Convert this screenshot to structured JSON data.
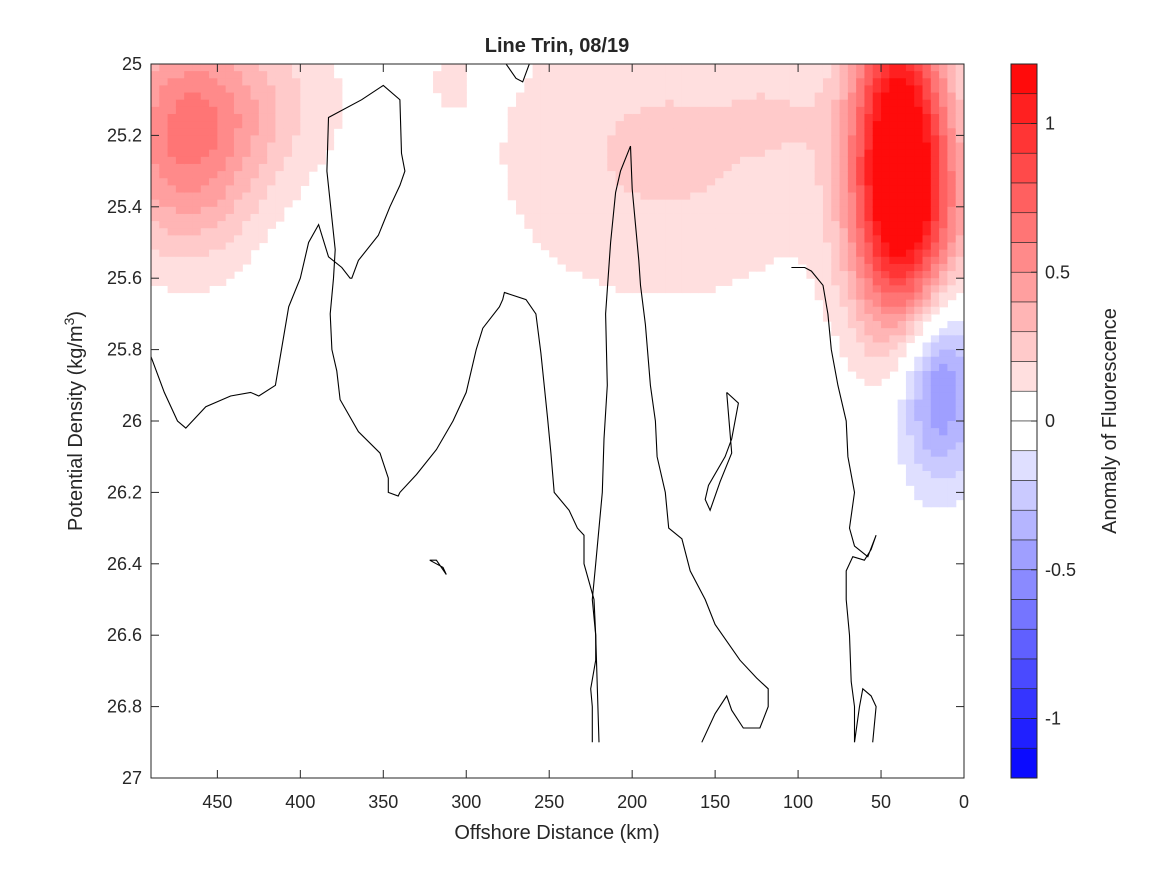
{
  "chart_data": {
    "type": "heatmap",
    "title": "Line Trin, 08/19",
    "xlabel": "Offshore Distance (km)",
    "ylabel": "Potential Density (kg/m",
    "ylabel_superscript": "3",
    "ylabel_suffix": ")",
    "xlim": [
      490,
      0
    ],
    "ylim": [
      25,
      27
    ],
    "x_reversed": true,
    "y_reversed": true,
    "grid": false,
    "x_ticks": [
      450,
      400,
      350,
      300,
      250,
      200,
      150,
      100,
      50,
      0
    ],
    "x_tick_labels": [
      "450",
      "400",
      "350",
      "300",
      "250",
      "200",
      "150",
      "100",
      "50",
      "0"
    ],
    "y_ticks": [
      25,
      25.2,
      25.4,
      25.6,
      25.8,
      26,
      26.2,
      26.4,
      26.6,
      26.8,
      27
    ],
    "y_tick_labels": [
      "25",
      "25.2",
      "25.4",
      "25.6",
      "25.8",
      "26",
      "26.2",
      "26.4",
      "26.6",
      "26.8",
      "27"
    ],
    "colorbar": {
      "label": "Anomaly of Fluorescence",
      "range": [
        -1.2,
        1.2
      ],
      "levels": 24,
      "colormap": "blue-white-red",
      "low_color": "#0000ff",
      "mid_color": "#ffffff",
      "high_color": "#ff0000",
      "ticks": [
        1,
        0.5,
        0,
        -0.5,
        -1
      ],
      "tick_labels": [
        "1",
        "0.5",
        "0",
        "-0.5",
        "-1"
      ]
    },
    "zero_contours": [
      [
        [
          490,
          25.82
        ],
        [
          482,
          25.92
        ],
        [
          474,
          26
        ],
        [
          469,
          26.02
        ],
        [
          457,
          25.96
        ],
        [
          442,
          25.93
        ],
        [
          430,
          25.92
        ],
        [
          425,
          25.93
        ],
        [
          415,
          25.9
        ],
        [
          407,
          25.68
        ],
        [
          400,
          25.6
        ],
        [
          395,
          25.5
        ],
        [
          389,
          25.45
        ],
        [
          383,
          25.54
        ],
        [
          375,
          25.57
        ],
        [
          370,
          25.6
        ],
        [
          369,
          25.6
        ],
        [
          365,
          25.55
        ],
        [
          353,
          25.48
        ],
        [
          346,
          25.4
        ],
        [
          340,
          25.34
        ],
        [
          337,
          25.3
        ],
        [
          339,
          25.25
        ],
        [
          340,
          25.1
        ],
        [
          350,
          25.06
        ],
        [
          363,
          25.1
        ],
        [
          383,
          25.15
        ],
        [
          384,
          25.3
        ],
        [
          379,
          25.52
        ],
        [
          380,
          25.6
        ],
        [
          382,
          25.7
        ],
        [
          381,
          25.8
        ],
        [
          378,
          25.86
        ],
        [
          376,
          25.94
        ],
        [
          365,
          26.03
        ],
        [
          352,
          26.09
        ],
        [
          347,
          26.16
        ],
        [
          347,
          26.2
        ],
        [
          341,
          26.21
        ],
        [
          340,
          26.2
        ],
        [
          330,
          26.15
        ],
        [
          318,
          26.08
        ],
        [
          308,
          26
        ],
        [
          300,
          25.92
        ],
        [
          294,
          25.8
        ],
        [
          290,
          25.74
        ],
        [
          280,
          25.68
        ],
        [
          278,
          25.66
        ],
        [
          277,
          25.64
        ],
        [
          264,
          25.66
        ],
        [
          258,
          25.7
        ],
        [
          255,
          25.81
        ],
        [
          251,
          25.99
        ],
        [
          249,
          26.09
        ],
        [
          247,
          26.2
        ],
        [
          238,
          26.25
        ],
        [
          233,
          26.3
        ],
        [
          229,
          26.32
        ],
        [
          229,
          26.4
        ],
        [
          223,
          26.5
        ],
        [
          222,
          26.6
        ],
        [
          220,
          26.9
        ]
      ],
      [
        [
          276,
          25
        ],
        [
          270,
          25.04
        ],
        [
          266,
          25.05
        ],
        [
          262,
          25
        ]
      ],
      [
        [
          322,
          26.39
        ],
        [
          314,
          26.41
        ],
        [
          312,
          26.43
        ],
        [
          318,
          26.39
        ],
        [
          322,
          26.39
        ]
      ],
      [
        [
          158,
          26.9
        ],
        [
          150,
          26.82
        ],
        [
          143,
          26.77
        ],
        [
          140,
          26.81
        ],
        [
          133,
          26.86
        ],
        [
          123,
          26.86
        ],
        [
          118,
          26.8
        ],
        [
          118,
          26.75
        ],
        [
          125,
          26.72
        ],
        [
          135,
          26.67
        ],
        [
          144,
          26.61
        ],
        [
          150,
          26.57
        ],
        [
          156,
          26.5
        ],
        [
          165,
          26.42
        ],
        [
          170,
          26.33
        ],
        [
          178,
          26.3
        ],
        [
          180,
          26.2
        ],
        [
          185,
          26.1
        ],
        [
          186,
          26
        ],
        [
          189,
          25.9
        ],
        [
          192,
          25.73
        ],
        [
          195,
          25.62
        ],
        [
          196,
          25.55
        ],
        [
          200,
          25.35
        ],
        [
          201,
          25.23
        ],
        [
          207,
          25.3
        ],
        [
          210,
          25.36
        ],
        [
          213,
          25.5
        ],
        [
          216,
          25.7
        ],
        [
          215,
          25.9
        ],
        [
          217,
          26.05
        ],
        [
          218,
          26.2
        ],
        [
          220,
          26.3
        ],
        [
          222,
          26.4
        ],
        [
          224,
          26.5
        ],
        [
          222,
          26.6
        ],
        [
          222,
          26.67
        ],
        [
          225,
          26.75
        ],
        [
          224,
          26.8
        ],
        [
          224,
          26.9
        ]
      ],
      [
        [
          143,
          25.92
        ],
        [
          136,
          25.95
        ],
        [
          140,
          26.05
        ],
        [
          144,
          26.1
        ],
        [
          154,
          26.18
        ],
        [
          156,
          26.22
        ],
        [
          153,
          26.25
        ],
        [
          147,
          26.17
        ],
        [
          140,
          26.09
        ],
        [
          143,
          25.92
        ]
      ],
      [
        [
          55,
          26.9
        ],
        [
          53,
          26.8
        ],
        [
          56,
          26.77
        ],
        [
          61,
          26.75
        ],
        [
          63,
          26.8
        ],
        [
          66,
          26.9
        ],
        [
          66,
          26.8
        ],
        [
          68,
          26.73
        ],
        [
          69,
          26.6
        ],
        [
          71,
          26.5
        ],
        [
          71,
          26.42
        ],
        [
          67,
          26.38
        ],
        [
          60,
          26.39
        ],
        [
          56,
          26.36
        ],
        [
          53,
          26.32
        ],
        [
          58,
          26.38
        ],
        [
          66,
          26.35
        ],
        [
          69,
          26.3
        ],
        [
          66,
          26.2
        ],
        [
          70,
          26.1
        ],
        [
          71,
          26
        ],
        [
          76,
          25.9
        ],
        [
          80,
          25.8
        ],
        [
          82,
          25.7
        ],
        [
          85,
          25.62
        ],
        [
          92,
          25.58
        ],
        [
          96,
          25.57
        ],
        [
          104,
          25.57
        ]
      ]
    ],
    "positive_blobs": [
      {
        "center": [
          470,
          25.22
        ],
        "radius": [
          45,
          0.32
        ],
        "peak": 0.55
      },
      {
        "center": [
          430,
          25.1
        ],
        "radius": [
          60,
          0.25
        ],
        "peak": 0.2
      },
      {
        "center": [
          310,
          25.05
        ],
        "radius": [
          15,
          0.1
        ],
        "peak": 0.08
      },
      {
        "center": [
          180,
          25.25
        ],
        "radius": [
          110,
          0.45
        ],
        "peak": 0.22
      },
      {
        "center": [
          110,
          25.15
        ],
        "radius": [
          30,
          0.12
        ],
        "peak": 0.08
      },
      {
        "center": [
          40,
          25.2
        ],
        "radius": [
          28,
          0.45
        ],
        "peak": 1.05
      },
      {
        "center": [
          30,
          25.45
        ],
        "radius": [
          35,
          0.35
        ],
        "peak": 0.6
      }
    ],
    "negative_blobs": [
      {
        "center": [
          15,
          25.88
        ],
        "radius": [
          25,
          0.28
        ],
        "peak": -0.6
      }
    ]
  }
}
